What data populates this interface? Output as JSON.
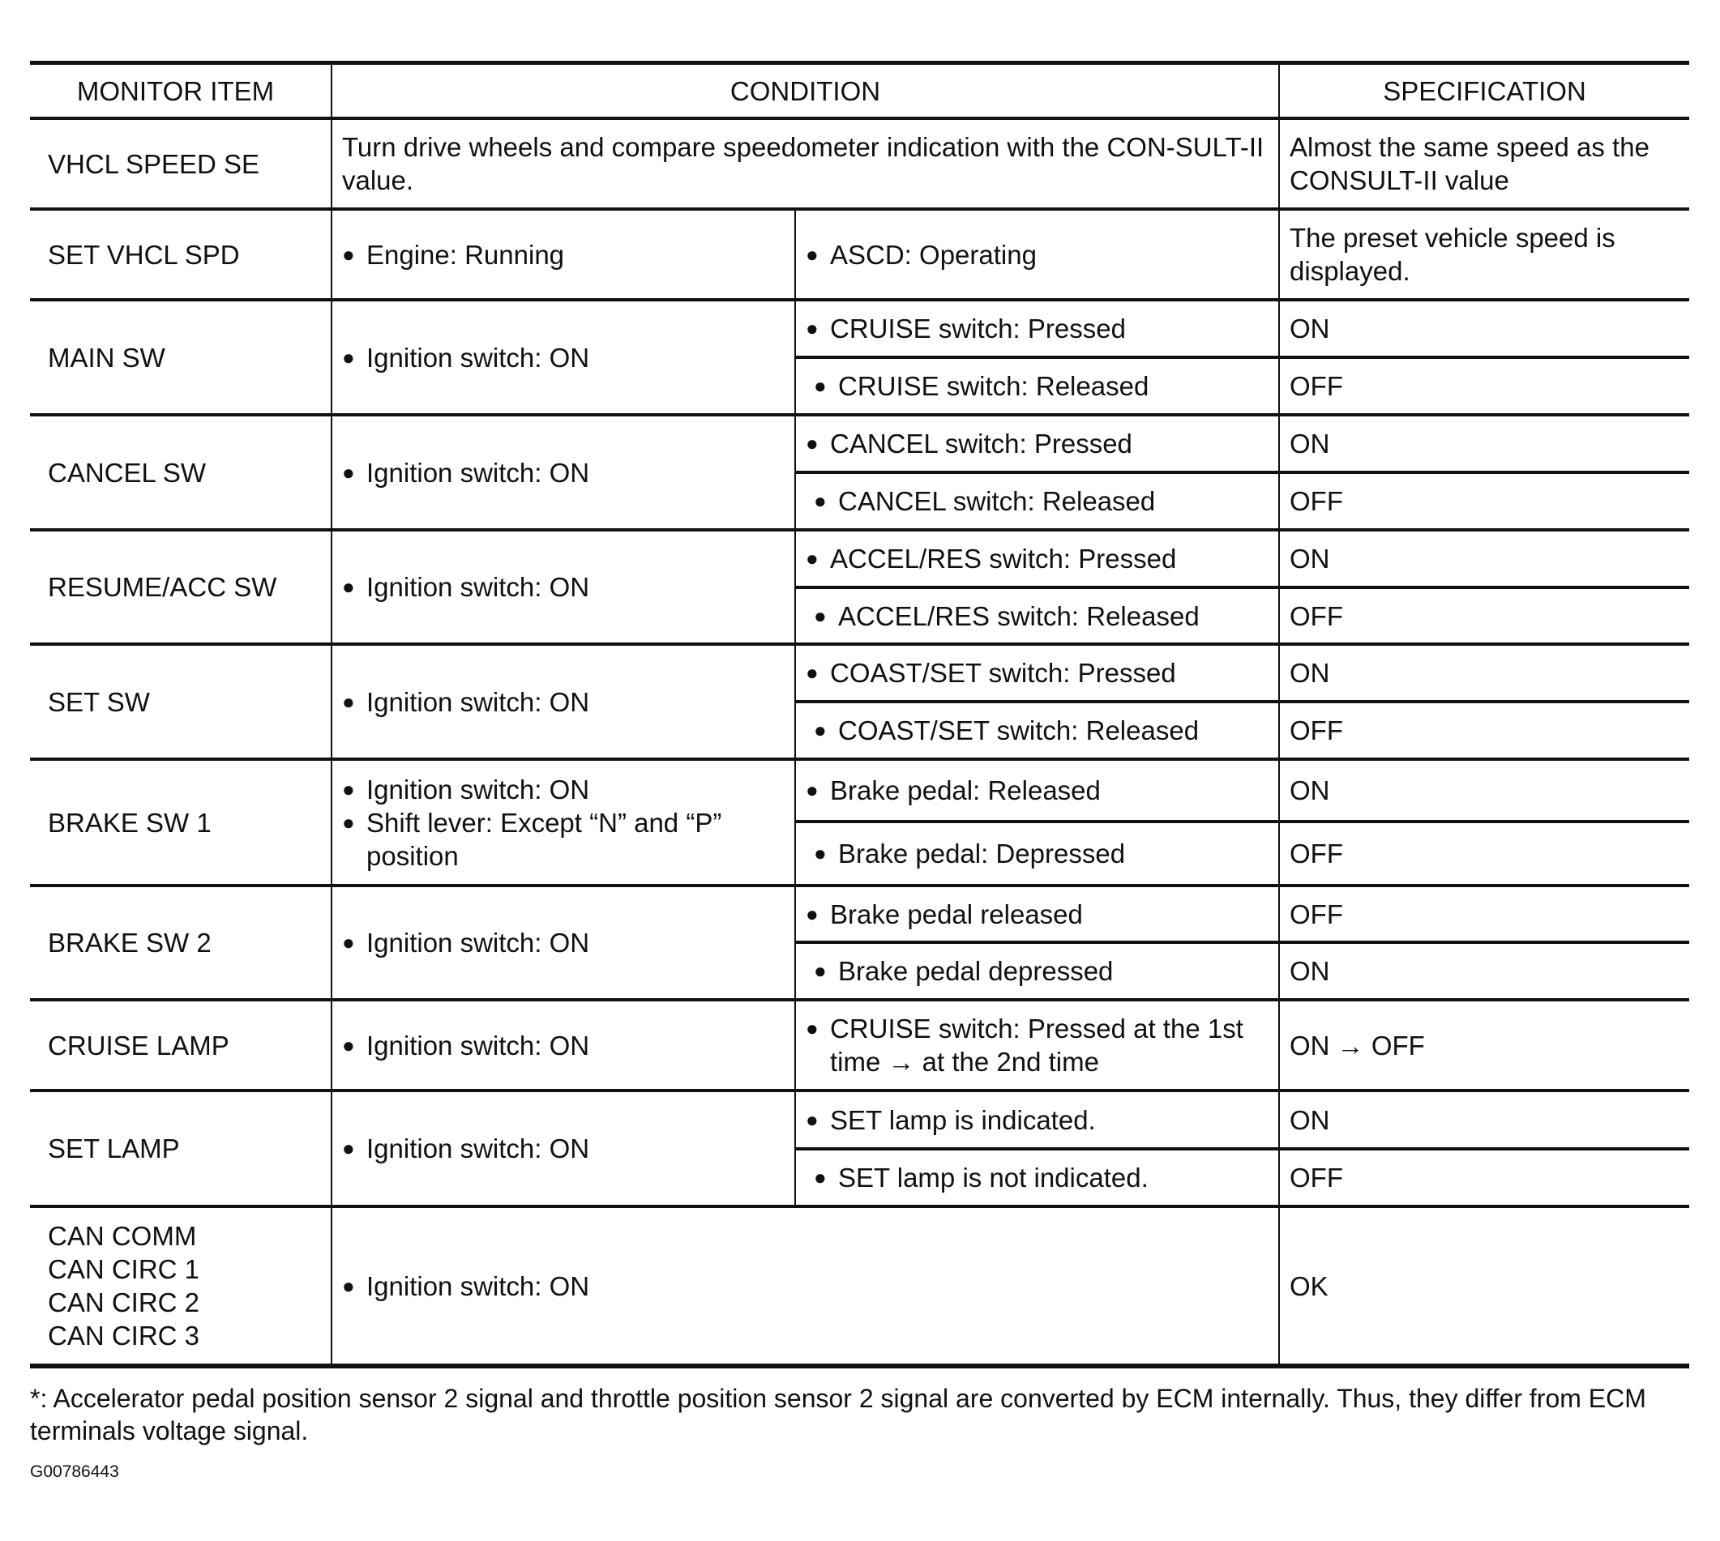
{
  "header": {
    "monitor_item": "MONITOR ITEM",
    "condition": "CONDITION",
    "specification": "SPECIFICATION"
  },
  "bullet": "●",
  "rows": [
    {
      "item": [
        "VHCL SPEED SE"
      ],
      "condition_full": "Turn drive wheels and compare speedometer indication with the CON-SULT-II value.",
      "spec_full": "Almost the same speed as the CONSULT-II value",
      "h": 112
    },
    {
      "item": [
        "SET VHCL SPD"
      ],
      "condition": [
        "Engine: Running"
      ],
      "sub": [
        {
          "cond": "ASCD: Operating",
          "spec": "The preset vehicle speed is displayed.",
          "h": 112
        }
      ]
    },
    {
      "item": [
        "MAIN SW"
      ],
      "condition": [
        "Ignition switch: ON"
      ],
      "sub": [
        {
          "cond": "CRUISE switch: Pressed",
          "spec": "ON",
          "h": 71
        },
        {
          "cond": "CRUISE switch: Released",
          "spec": "OFF",
          "h": 71
        }
      ]
    },
    {
      "item": [
        "CANCEL SW"
      ],
      "condition": [
        "Ignition switch: ON"
      ],
      "sub": [
        {
          "cond": "CANCEL switch: Pressed",
          "spec": "ON",
          "h": 71
        },
        {
          "cond": "CANCEL switch: Released",
          "spec": "OFF",
          "h": 71
        }
      ]
    },
    {
      "item": [
        "RESUME/ACC SW"
      ],
      "condition": [
        "Ignition switch: ON"
      ],
      "sub": [
        {
          "cond": "ACCEL/RES switch: Pressed",
          "spec": "ON",
          "h": 71
        },
        {
          "cond": "ACCEL/RES switch: Released",
          "spec": "OFF",
          "h": 70
        }
      ]
    },
    {
      "item": [
        "SET SW"
      ],
      "condition": [
        "Ignition switch: ON"
      ],
      "sub": [
        {
          "cond": "COAST/SET switch: Pressed",
          "spec": "ON",
          "h": 71
        },
        {
          "cond": "COAST/SET switch: Released",
          "spec": "OFF",
          "h": 71
        }
      ]
    },
    {
      "item": [
        "BRAKE SW 1"
      ],
      "condition": [
        "Ignition switch: ON",
        "Shift lever: Except “N” and “P” position"
      ],
      "sub": [
        {
          "cond": "Brake pedal: Released",
          "spec": "ON",
          "h": 77
        },
        {
          "cond": "Brake pedal: Depressed",
          "spec": "OFF",
          "h": 79
        }
      ]
    },
    {
      "item": [
        "BRAKE SW 2"
      ],
      "condition": [
        "Ignition switch: ON"
      ],
      "sub": [
        {
          "cond": "Brake pedal released",
          "spec": "OFF",
          "h": 70
        },
        {
          "cond": "Brake pedal depressed",
          "spec": "ON",
          "h": 71
        }
      ]
    },
    {
      "item": [
        "CRUISE LAMP"
      ],
      "condition": [
        "Ignition switch: ON"
      ],
      "sub": [
        {
          "cond": "CRUISE switch: Pressed at the 1st time → at the 2nd time",
          "spec": "ON → OFF",
          "h": 112
        }
      ]
    },
    {
      "item": [
        "SET LAMP"
      ],
      "condition": [
        "Ignition switch: ON"
      ],
      "sub": [
        {
          "cond": "SET lamp is indicated.",
          "spec": "ON",
          "h": 72
        },
        {
          "cond": "SET lamp is not indicated.",
          "spec": "OFF",
          "h": 71
        }
      ]
    },
    {
      "item": [
        "CAN COMM",
        "CAN CIRC 1",
        "CAN CIRC 2",
        "CAN CIRC 3"
      ],
      "condition_full_bullet": "Ignition switch: ON",
      "spec_full": "OK",
      "h": 197
    }
  ],
  "footnote": "*: Accelerator pedal position sensor 2 signal and throttle position sensor 2 signal are converted by ECM internally. Thus, they differ from ECM terminals voltage signal.",
  "figure_code": "G00786443"
}
